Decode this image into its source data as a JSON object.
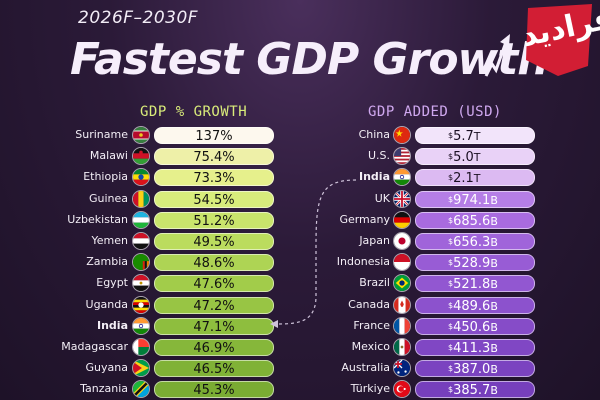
{
  "header": {
    "period": "2026F–2030F",
    "title": "Fastest GDP Growth",
    "logo_text": "فرادید"
  },
  "chart_data": [
    {
      "type": "bar",
      "title": "GDP % GROWTH",
      "categories": [
        "Suriname",
        "Malawi",
        "Ethiopia",
        "Guinea",
        "Uzbekistan",
        "Yemen",
        "Zambia",
        "Egypt",
        "Uganda",
        "India",
        "Madagascar",
        "Guyana",
        "Tanzania"
      ],
      "values": [
        137,
        75.4,
        73.3,
        54.5,
        51.2,
        49.5,
        48.6,
        47.6,
        47.2,
        47.1,
        46.9,
        46.5,
        45.3
      ],
      "labels": [
        "137%",
        "75.4%",
        "73.3%",
        "54.5%",
        "51.2%",
        "49.5%",
        "48.6%",
        "47.6%",
        "47.2%",
        "47.1%",
        "46.9%",
        "46.5%",
        "45.3%"
      ],
      "highlight": "India"
    },
    {
      "type": "bar",
      "title": "GDP ADDED (USD)",
      "categories": [
        "China",
        "U.S.",
        "India",
        "UK",
        "Germany",
        "Japan",
        "Indonesia",
        "Brazil",
        "Canada",
        "France",
        "Mexico",
        "Australia",
        "Türkiye"
      ],
      "values": [
        5700,
        5000,
        2100,
        974.1,
        685.6,
        656.3,
        528.9,
        521.8,
        489.6,
        450.6,
        411.3,
        387.0,
        385.7
      ],
      "labels": [
        {
          "cur": "$",
          "num": "5.7",
          "unit": "T"
        },
        {
          "cur": "$",
          "num": "5.0",
          "unit": "T"
        },
        {
          "cur": "$",
          "num": "2.1",
          "unit": "T"
        },
        {
          "cur": "$",
          "num": "974.1",
          "unit": "B"
        },
        {
          "cur": "$",
          "num": "685.6",
          "unit": "B"
        },
        {
          "cur": "$",
          "num": "656.3",
          "unit": "B"
        },
        {
          "cur": "$",
          "num": "528.9",
          "unit": "B"
        },
        {
          "cur": "$",
          "num": "521.8",
          "unit": "B"
        },
        {
          "cur": "$",
          "num": "489.6",
          "unit": "B"
        },
        {
          "cur": "$",
          "num": "450.6",
          "unit": "B"
        },
        {
          "cur": "$",
          "num": "411.3",
          "unit": "B"
        },
        {
          "cur": "$",
          "num": "387.0",
          "unit": "B"
        },
        {
          "cur": "$",
          "num": "385.7",
          "unit": "B"
        }
      ],
      "highlight": "India"
    }
  ],
  "colors": {
    "left_bars": [
      "#fdf8ee",
      "#eef0a8",
      "#e6f08c",
      "#d8ec7c",
      "#c9e46c",
      "#bbdc5e",
      "#aed454",
      "#a2cc4a",
      "#98c544",
      "#8ebe3e",
      "#86b73a",
      "#80b236",
      "#7aac33"
    ],
    "right_bars": [
      "#f2e4fa",
      "#e9d2f7",
      "#dcbaf2",
      "#b57ee6",
      "#a96bdf",
      "#a064da",
      "#985cd5",
      "#9257d1",
      "#8c52cd",
      "#864cc8",
      "#8047c4",
      "#7b43c0",
      "#763fbc"
    ]
  }
}
